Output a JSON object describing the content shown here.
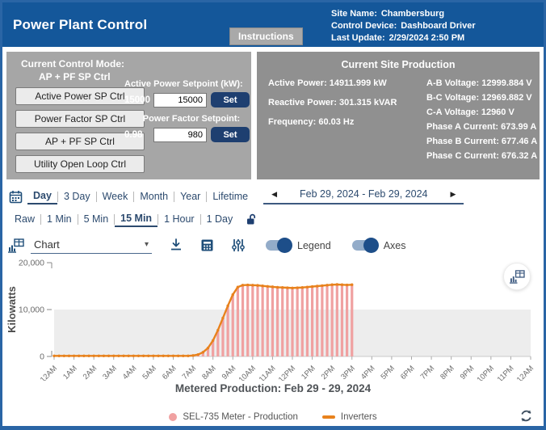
{
  "header": {
    "title": "Power Plant Control",
    "instructions_button": "Instructions",
    "site_name_label": "Site Name:",
    "site_name": "Chambersburg",
    "control_device_label": "Control Device:",
    "control_device": "Dashboard Driver",
    "last_update_label": "Last Update:",
    "last_update": "2/29/2024 2:50 PM"
  },
  "control_panel": {
    "mode_label": "Current Control Mode:",
    "mode_value": "AP + PF SP Ctrl",
    "buttons": [
      "Active Power SP Ctrl",
      "Power Factor SP Ctrl",
      "AP + PF SP Ctrl",
      "Utility Open Loop Ctrl"
    ],
    "active_power_label": "Active Power Setpoint (kW):",
    "active_power_current": "15000",
    "active_power_input": "15000",
    "power_factor_label": "Power Factor Setpoint:",
    "power_factor_current": "0.98",
    "power_factor_input": "980",
    "set_label": "Set"
  },
  "site_production": {
    "title": "Current Site Production",
    "col1": [
      "Active Power: 14911.999 kW",
      "Reactive Power: 301.315 kVAR",
      "Frequency: 60.03 Hz"
    ],
    "col2": [
      "A-B Voltage: 12999.884 V",
      "B-C Voltage: 12969.882 V",
      "C-A Voltage: 12960 V",
      "Phase A Current: 673.99 A",
      "Phase B Current: 677.46 A",
      "Phase C Current: 676.32 A"
    ]
  },
  "range_tabs": {
    "items": [
      "Day",
      "3 Day",
      "Week",
      "Month",
      "Year",
      "Lifetime"
    ],
    "active": "Day",
    "prev_icon": "◀",
    "next_icon": "▶",
    "date_range": "Feb 29, 2024 - Feb 29, 2024"
  },
  "resolution_tabs": {
    "items": [
      "Raw",
      "1 Min",
      "5 Min",
      "15 Min",
      "1 Hour",
      "1 Day"
    ],
    "active": "15 Min"
  },
  "chart_controls": {
    "view_selected": "Chart",
    "caret_icon": "▾",
    "legend_toggle_label": "Legend",
    "axes_toggle_label": "Axes",
    "legend_on": true,
    "axes_on": true
  },
  "chart_data": {
    "type": "bar",
    "title": "Metered Production: Feb 29 - 29, 2024",
    "ylabel": "Kilowatts",
    "ylim": [
      0,
      20000
    ],
    "ytick_labels": [
      "20,000",
      "10,000",
      "0"
    ],
    "plot_band": [
      0,
      10000
    ],
    "x_hour_labels": [
      "12AM",
      "1AM",
      "2AM",
      "3AM",
      "4AM",
      "5AM",
      "6AM",
      "7AM",
      "8AM",
      "9AM",
      "10AM",
      "11AM",
      "12PM",
      "1PM",
      "2PM",
      "3PM",
      "4PM",
      "5PM",
      "6PM",
      "7PM",
      "8PM",
      "9PM",
      "10PM",
      "11PM",
      "12AM"
    ],
    "resolution_minutes": 15,
    "data_start": "12AM",
    "data_end": "3PM",
    "series": [
      {
        "name": "SEL-735 Meter - Production",
        "kind": "bar",
        "color": "#f0a1a1",
        "values": [
          120,
          120,
          120,
          120,
          120,
          120,
          120,
          120,
          120,
          120,
          120,
          120,
          120,
          120,
          120,
          120,
          120,
          120,
          120,
          120,
          120,
          120,
          120,
          120,
          120,
          120,
          120,
          120,
          200,
          400,
          900,
          1800,
          3400,
          5600,
          8200,
          10800,
          13200,
          14800,
          15200,
          15250,
          15200,
          15150,
          15050,
          14950,
          14850,
          14750,
          14700,
          14650,
          14600,
          14650,
          14700,
          14800,
          14900,
          15000,
          15100,
          15200,
          15300,
          15350,
          15300,
          15250,
          15300
        ]
      },
      {
        "name": "Inverters",
        "kind": "line",
        "color": "#e8821d",
        "values": [
          120,
          120,
          120,
          120,
          120,
          120,
          120,
          120,
          120,
          120,
          120,
          120,
          120,
          120,
          120,
          120,
          120,
          120,
          120,
          120,
          120,
          120,
          120,
          120,
          120,
          120,
          120,
          120,
          200,
          400,
          900,
          1800,
          3400,
          5600,
          8200,
          10800,
          13200,
          14800,
          15200,
          15250,
          15200,
          15150,
          15050,
          14950,
          14850,
          14750,
          14700,
          14650,
          14600,
          14650,
          14700,
          14800,
          14900,
          15000,
          15100,
          15200,
          15300,
          15350,
          15300,
          15250,
          15300
        ]
      }
    ]
  },
  "legend": {
    "items": [
      {
        "label": "SEL-735 Meter - Production",
        "color": "#f0a1a1",
        "marker": "circle"
      },
      {
        "label": "Inverters",
        "color": "#e8821d",
        "marker": "dash"
      }
    ]
  },
  "colors": {
    "header_blue": "#14579A",
    "panel_gray_light": "#a6a6a6",
    "panel_gray_dark": "#909090",
    "set_button_navy": "#1e3f70",
    "toggle_navy": "#1d4e89",
    "tab_text": "#2c4a6e",
    "bar_pink": "#f0a1a1",
    "line_orange": "#e8821d",
    "plot_band_gray": "#ededed"
  }
}
